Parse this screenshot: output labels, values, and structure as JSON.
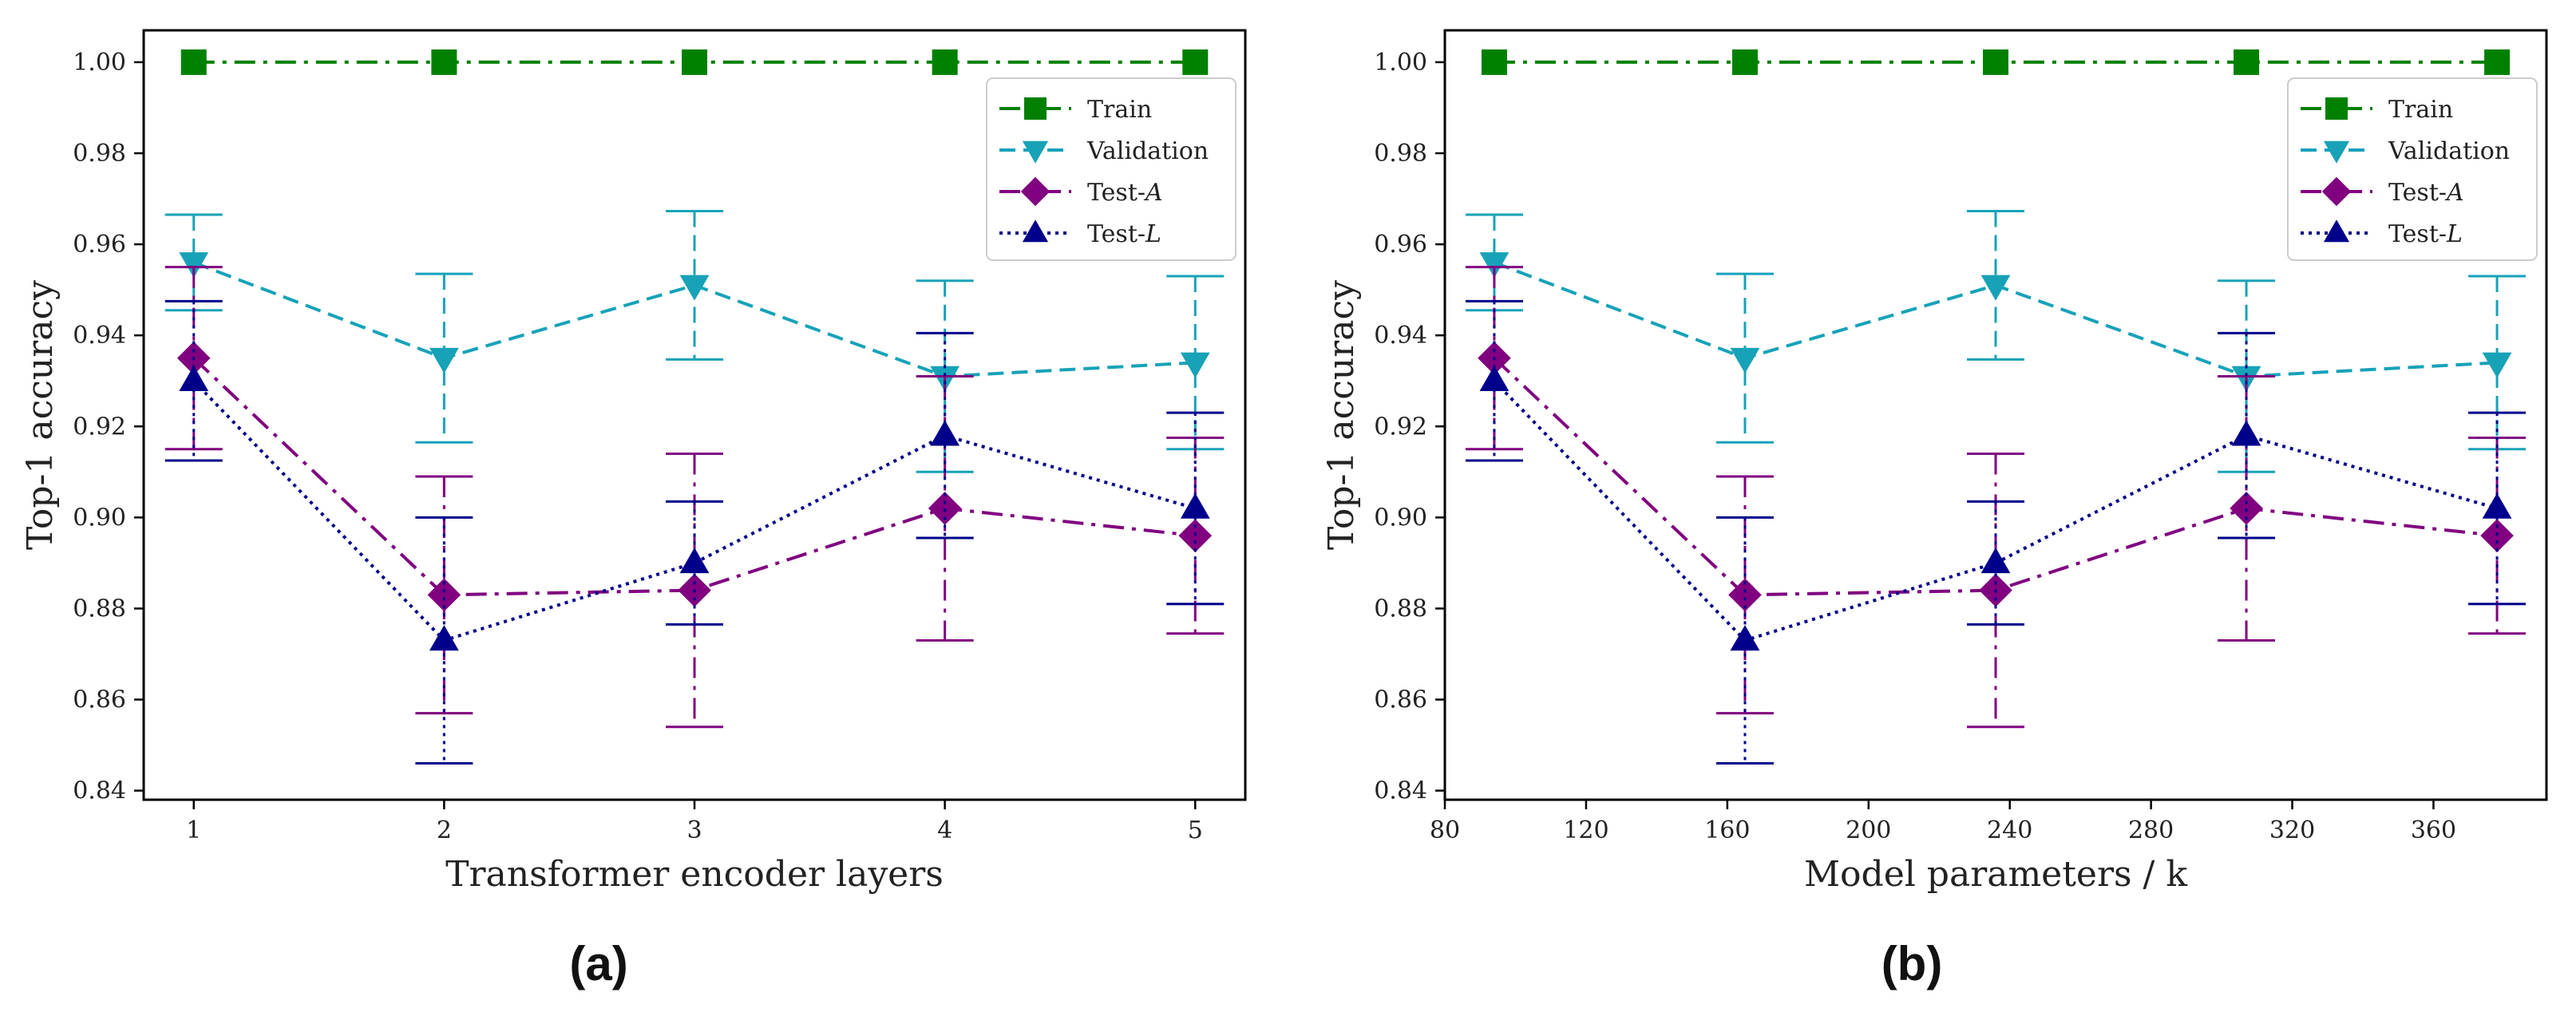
{
  "chart_data": [
    {
      "type": "line",
      "caption_mark": "a",
      "xlabel": "Transformer encoder layers",
      "ylabel": "Top-1 accuracy",
      "ylim": [
        0.838,
        1.007
      ],
      "xlim": [
        0.8,
        5.2
      ],
      "x_ticks": [
        1,
        2,
        3,
        4,
        5
      ],
      "x_tick_labels": [
        "1",
        "2",
        "3",
        "4",
        "5"
      ],
      "y_ticks": [
        0.84,
        0.86,
        0.88,
        0.9,
        0.92,
        0.94,
        0.96,
        0.98,
        1.0
      ],
      "y_tick_labels": [
        "0.84",
        "0.86",
        "0.88",
        "0.90",
        "0.92",
        "0.94",
        "0.96",
        "0.98",
        "1.00"
      ],
      "grid": false,
      "legend": {
        "position": "top-right",
        "entries": [
          {
            "prefix": "Train",
            "italic": ""
          },
          {
            "prefix": "Validation",
            "italic": ""
          },
          {
            "prefix": "Test-",
            "italic": "A"
          },
          {
            "prefix": "Test-",
            "italic": "L"
          }
        ]
      },
      "x": [
        1,
        2,
        3,
        4,
        5
      ],
      "series": [
        {
          "name": "Train",
          "color": "#008000",
          "dash": "26 10 5 10",
          "marker": "square",
          "values": [
            1.0,
            1.0,
            1.0,
            1.0,
            1.0
          ],
          "errors": [
            0,
            0,
            0,
            0,
            0
          ]
        },
        {
          "name": "Validation",
          "color": "#17a2b8",
          "dash": "20 10",
          "marker": "triangle-down",
          "values": [
            0.956,
            0.935,
            0.951,
            0.931,
            0.934
          ],
          "errors": [
            0.0105,
            0.0185,
            0.0163,
            0.021,
            0.019
          ]
        },
        {
          "name": "Test-A",
          "color": "#800080",
          "dash": "26 10 5 10",
          "marker": "diamond",
          "values": [
            0.935,
            0.883,
            0.884,
            0.902,
            0.896
          ],
          "errors": [
            0.02,
            0.026,
            0.03,
            0.029,
            0.0215
          ]
        },
        {
          "name": "Test-L",
          "color": "#00008b",
          "dash": "4 6",
          "marker": "triangle-up",
          "values": [
            0.93,
            0.873,
            0.89,
            0.918,
            0.902
          ],
          "errors": [
            0.0175,
            0.027,
            0.0135,
            0.0225,
            0.021
          ]
        }
      ]
    },
    {
      "type": "line",
      "caption_mark": "b",
      "xlabel": "Model parameters / k",
      "ylabel": "Top-1 accuracy",
      "ylim": [
        0.838,
        1.007
      ],
      "xlim": [
        80,
        392
      ],
      "x_ticks": [
        80,
        120,
        160,
        200,
        240,
        280,
        320,
        360
      ],
      "x_tick_labels": [
        "80",
        "120",
        "160",
        "200",
        "240",
        "280",
        "320",
        "360"
      ],
      "y_ticks": [
        0.84,
        0.86,
        0.88,
        0.9,
        0.92,
        0.94,
        0.96,
        0.98,
        1.0
      ],
      "y_tick_labels": [
        "0.84",
        "0.86",
        "0.88",
        "0.90",
        "0.92",
        "0.94",
        "0.96",
        "0.98",
        "1.00"
      ],
      "grid": false,
      "legend": {
        "position": "top-right",
        "entries": [
          {
            "prefix": "Train",
            "italic": ""
          },
          {
            "prefix": "Validation",
            "italic": ""
          },
          {
            "prefix": "Test-",
            "italic": "A"
          },
          {
            "prefix": "Test-",
            "italic": "L"
          }
        ]
      },
      "x": [
        94,
        165,
        236,
        307,
        378
      ],
      "series": [
        {
          "name": "Train",
          "color": "#008000",
          "dash": "26 10 5 10",
          "marker": "square",
          "values": [
            1.0,
            1.0,
            1.0,
            1.0,
            1.0
          ],
          "errors": [
            0,
            0,
            0,
            0,
            0
          ]
        },
        {
          "name": "Validation",
          "color": "#17a2b8",
          "dash": "20 10",
          "marker": "triangle-down",
          "values": [
            0.956,
            0.935,
            0.951,
            0.931,
            0.934
          ],
          "errors": [
            0.0105,
            0.0185,
            0.0163,
            0.021,
            0.019
          ]
        },
        {
          "name": "Test-A",
          "color": "#800080",
          "dash": "26 10 5 10",
          "marker": "diamond",
          "values": [
            0.935,
            0.883,
            0.884,
            0.902,
            0.896
          ],
          "errors": [
            0.02,
            0.026,
            0.03,
            0.029,
            0.0215
          ]
        },
        {
          "name": "Test-L",
          "color": "#00008b",
          "dash": "4 6",
          "marker": "triangle-up",
          "values": [
            0.93,
            0.873,
            0.89,
            0.918,
            0.902
          ],
          "errors": [
            0.0175,
            0.027,
            0.0135,
            0.0225,
            0.021
          ]
        }
      ]
    }
  ]
}
